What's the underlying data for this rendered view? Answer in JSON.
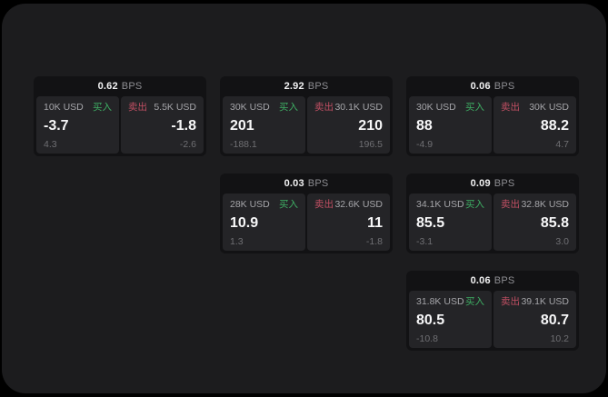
{
  "labels": {
    "bps": "BPS",
    "buy": "买入",
    "sell": "卖出"
  },
  "colors": {
    "backdrop": "#000000",
    "surface": "#1c1c1e",
    "card": "#121214",
    "tile": "#242427",
    "buy_green": "#3eaf64",
    "sell_red": "#c04f63"
  },
  "cards": [
    {
      "bps": "0.62",
      "buy": {
        "amount": "10K USD",
        "price": "-3.7",
        "delta": "4.3"
      },
      "sell": {
        "amount": "5.5K USD",
        "price": "-1.8",
        "delta": "-2.6"
      },
      "grid": {
        "row": 1,
        "col": 1
      }
    },
    {
      "bps": "2.92",
      "buy": {
        "amount": "30K USD",
        "price": "201",
        "delta": "-188.1"
      },
      "sell": {
        "amount": "30.1K USD",
        "price": "210",
        "delta": "196.5"
      },
      "grid": {
        "row": 1,
        "col": 2
      }
    },
    {
      "bps": "0.06",
      "buy": {
        "amount": "30K USD",
        "price": "88",
        "delta": "-4.9"
      },
      "sell": {
        "amount": "30K USD",
        "price": "88.2",
        "delta": "4.7"
      },
      "grid": {
        "row": 1,
        "col": 3
      }
    },
    {
      "bps": "0.03",
      "buy": {
        "amount": "28K USD",
        "price": "10.9",
        "delta": "1.3"
      },
      "sell": {
        "amount": "32.6K USD",
        "price": "11",
        "delta": "-1.8"
      },
      "grid": {
        "row": 2,
        "col": 2
      }
    },
    {
      "bps": "0.09",
      "buy": {
        "amount": "34.1K USD",
        "price": "85.5",
        "delta": "-3.1"
      },
      "sell": {
        "amount": "32.8K USD",
        "price": "85.8",
        "delta": "3.0"
      },
      "grid": {
        "row": 2,
        "col": 3
      }
    },
    {
      "bps": "0.06",
      "buy": {
        "amount": "31.8K USD",
        "price": "80.5",
        "delta": "-10.8"
      },
      "sell": {
        "amount": "39.1K USD",
        "price": "80.7",
        "delta": "10.2"
      },
      "grid": {
        "row": 3,
        "col": 3
      }
    }
  ]
}
